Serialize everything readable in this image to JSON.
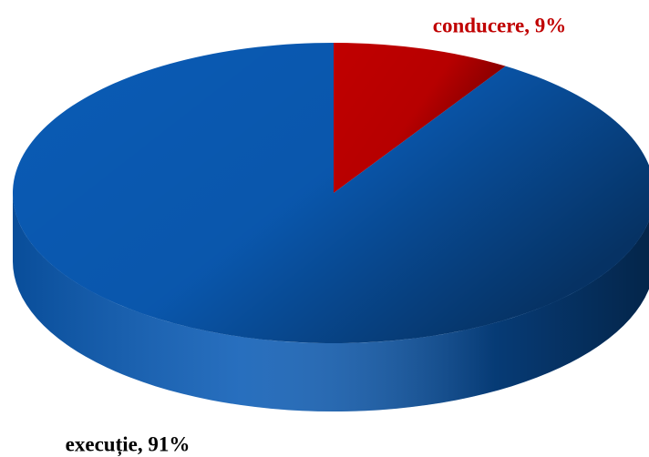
{
  "chart_data": {
    "type": "pie",
    "values": [
      9,
      91
    ],
    "value_labels": [
      "conducere, 9%",
      "execuție, 91%"
    ],
    "colors": [
      "#c00000",
      "#0a5bb5"
    ],
    "label_colors": [
      "#c00000",
      "#000000"
    ],
    "start_angle": 0,
    "direction": "clockwise",
    "style": "3d"
  }
}
